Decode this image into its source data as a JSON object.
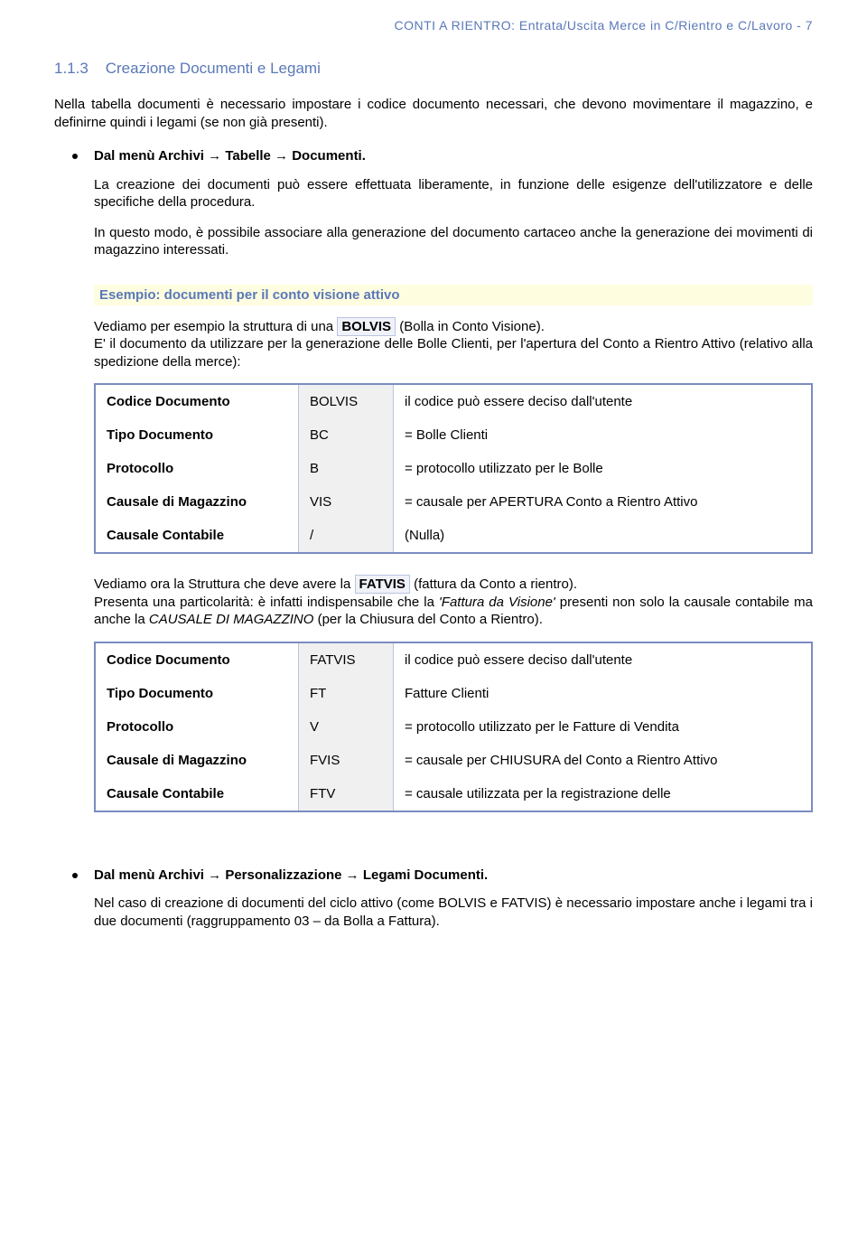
{
  "header": "CONTI A RIENTRO: Entrata/Uscita Merce in C/Rientro e C/Lavoro -    7",
  "section": {
    "number": "1.1.3",
    "title": "Creazione Documenti e Legami"
  },
  "intro": "Nella tabella documenti è necessario impostare i codice documento necessari, che devono movimentare il magazzino, e definirne quindi i legami (se non già presenti).",
  "menu_path": "Dal menù Archivi → Tabelle → Documenti.",
  "para1": "La creazione dei documenti può essere effettuata liberamente, in funzione delle esigenze dell'utilizzatore e delle specifiche della procedura.",
  "para2": "In questo modo, è possibile associare alla generazione del documento cartaceo anche la generazione dei movimenti di magazzino interessati.",
  "example_heading": "Esempio: documenti per il conto visione attivo",
  "bolvis": {
    "line1_a": "Vediamo per esempio la struttura di una ",
    "line1_code": "BOLVIS",
    "line1_b": " (Bolla in Conto Visione).",
    "line2": "E' il documento da utilizzare per la generazione delle Bolle Clienti,  per l'apertura del Conto a Rientro Attivo (relativo alla spedizione della merce):",
    "rows": [
      {
        "label": "Codice Documento",
        "code": "BOLVIS",
        "desc": "il codice può essere deciso dall'utente"
      },
      {
        "label": "Tipo Documento",
        "code": "BC",
        "desc": "= Bolle Clienti"
      },
      {
        "label": "Protocollo",
        "code": "B",
        "desc": "= protocollo utilizzato per le Bolle"
      },
      {
        "label": "Causale di Magazzino",
        "code": "VIS",
        "desc": "= causale per APERTURA Conto a Rientro Attivo"
      },
      {
        "label": "Causale Contabile",
        "code": "/",
        "desc": "(Nulla)"
      }
    ]
  },
  "fatvis": {
    "line1_a": "Vediamo ora la Struttura che deve avere la ",
    "line1_code": "FATVIS",
    "line1_b": " (fattura da Conto a rientro).",
    "line2_a": "Presenta una particolarità: è infatti indispensabile che la ",
    "line2_it1": "'Fattura da Visione'",
    "line2_b": " presenti non solo la causale contabile ma anche la ",
    "line2_it2": "CAUSALE DI MAGAZZINO",
    "line2_c": " (per la Chiusura del Conto a Rientro).",
    "rows": [
      {
        "label": "Codice Documento",
        "code": "FATVIS",
        "desc": "il codice può essere deciso dall'utente"
      },
      {
        "label": "Tipo Documento",
        "code": "FT",
        "desc": "Fatture Clienti"
      },
      {
        "label": "Protocollo",
        "code": "V",
        "desc": "= protocollo utilizzato per le Fatture di Vendita"
      },
      {
        "label": "Causale di Magazzino",
        "code": "FVIS",
        "desc": "= causale per CHIUSURA del Conto a Rientro Attivo"
      },
      {
        "label": "Causale Contabile",
        "code": "FTV",
        "desc": "= causale utilizzata per la registrazione delle"
      }
    ]
  },
  "legami_path": "Dal menù Archivi → Personalizzazione → Legami Documenti.",
  "final_para": "Nel caso di creazione di documenti del ciclo attivo (come BOLVIS e FATVIS) è necessario impostare anche i legami tra i due documenti (raggruppamento 03 – da Bolla a Fattura)."
}
